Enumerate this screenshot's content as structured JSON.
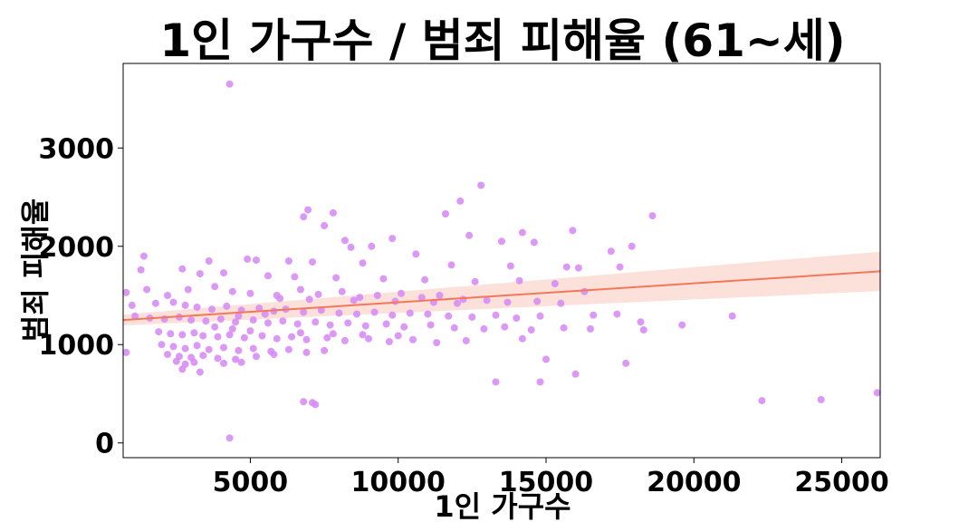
{
  "chart_data": {
    "type": "scatter",
    "title": "1인 가구수 / 범죄 피해율 (61~세)",
    "xlabel": "1인 가구수",
    "ylabel": "범죄 피해율",
    "xlim": [
      700,
      26300
    ],
    "ylim": [
      -150,
      3860
    ],
    "xticks": [
      5000,
      10000,
      15000,
      20000,
      25000
    ],
    "yticks": [
      0,
      1000,
      2000,
      3000
    ],
    "xtick_labels": [
      "5000",
      "10000",
      "15000",
      "20000",
      "25000"
    ],
    "ytick_labels": [
      "0",
      "1000",
      "2000",
      "3000"
    ],
    "grid": false,
    "colors": {
      "points": "#d68af5",
      "regression_line": "#f5775a",
      "confidence_band": "#fcdcd4"
    },
    "regression": {
      "x": [
        700,
        26300
      ],
      "y": [
        1250,
        1745
      ],
      "ci_lower": [
        1195,
        1545
      ],
      "ci_upper": [
        1305,
        1945
      ]
    },
    "points": [
      [
        4300,
        3650
      ],
      [
        12800,
        2620
      ],
      [
        12100,
        2460
      ],
      [
        6950,
        2370
      ],
      [
        7800,
        2340
      ],
      [
        11600,
        2330
      ],
      [
        18600,
        2310
      ],
      [
        6800,
        2300
      ],
      [
        7500,
        2210
      ],
      [
        15900,
        2160
      ],
      [
        14200,
        2140
      ],
      [
        12400,
        2110
      ],
      [
        9800,
        2080
      ],
      [
        8200,
        2060
      ],
      [
        13500,
        2050
      ],
      [
        14600,
        2040
      ],
      [
        17200,
        1950
      ],
      [
        17900,
        2000
      ],
      [
        9100,
        2000
      ],
      [
        8400,
        1990
      ],
      [
        1400,
        1900
      ],
      [
        10600,
        1920
      ],
      [
        4900,
        1870
      ],
      [
        5200,
        1860
      ],
      [
        3600,
        1850
      ],
      [
        6300,
        1850
      ],
      [
        7100,
        1840
      ],
      [
        8800,
        1830
      ],
      [
        11800,
        1810
      ],
      [
        13800,
        1800
      ],
      [
        15700,
        1790
      ],
      [
        16100,
        1780
      ],
      [
        17500,
        1790
      ],
      [
        2700,
        1770
      ],
      [
        1300,
        1760
      ],
      [
        4100,
        1730
      ],
      [
        3300,
        1720
      ],
      [
        5600,
        1700
      ],
      [
        6500,
        1690
      ],
      [
        7900,
        1680
      ],
      [
        9500,
        1670
      ],
      [
        10900,
        1660
      ],
      [
        12600,
        1640
      ],
      [
        14100,
        1650
      ],
      [
        15300,
        1620
      ],
      [
        16300,
        1540
      ],
      [
        2900,
        1560
      ],
      [
        3800,
        1590
      ],
      [
        4400,
        1540
      ],
      [
        5000,
        1520
      ],
      [
        5900,
        1500
      ],
      [
        6700,
        1560
      ],
      [
        7300,
        1510
      ],
      [
        8100,
        1540
      ],
      [
        8700,
        1480
      ],
      [
        9300,
        1500
      ],
      [
        10100,
        1520
      ],
      [
        10800,
        1480
      ],
      [
        11400,
        1500
      ],
      [
        12200,
        1460
      ],
      [
        13000,
        1450
      ],
      [
        13700,
        1430
      ],
      [
        14700,
        1440
      ],
      [
        15500,
        1420
      ],
      [
        1000,
        1400
      ],
      [
        1800,
        1420
      ],
      [
        2400,
        1430
      ],
      [
        2800,
        1400
      ],
      [
        3200,
        1380
      ],
      [
        3700,
        1360
      ],
      [
        4200,
        1390
      ],
      [
        4700,
        1350
      ],
      [
        5300,
        1370
      ],
      [
        5800,
        1340
      ],
      [
        6200,
        1360
      ],
      [
        6800,
        1330
      ],
      [
        7400,
        1350
      ],
      [
        8000,
        1320
      ],
      [
        8600,
        1310
      ],
      [
        9200,
        1330
      ],
      [
        9800,
        1300
      ],
      [
        10400,
        1320
      ],
      [
        11000,
        1310
      ],
      [
        11700,
        1290
      ],
      [
        12500,
        1280
      ],
      [
        13300,
        1300
      ],
      [
        14000,
        1270
      ],
      [
        14800,
        1290
      ],
      [
        16600,
        1300
      ],
      [
        17400,
        1310
      ],
      [
        1100,
        1290
      ],
      [
        1600,
        1270
      ],
      [
        2100,
        1260
      ],
      [
        2600,
        1280
      ],
      [
        3000,
        1250
      ],
      [
        3500,
        1240
      ],
      [
        4000,
        1260
      ],
      [
        4500,
        1230
      ],
      [
        5100,
        1250
      ],
      [
        5600,
        1220
      ],
      [
        6100,
        1240
      ],
      [
        6600,
        1210
      ],
      [
        7200,
        1230
      ],
      [
        7700,
        1200
      ],
      [
        8300,
        1220
      ],
      [
        8900,
        1190
      ],
      [
        9600,
        1210
      ],
      [
        10200,
        1180
      ],
      [
        11100,
        1200
      ],
      [
        11900,
        1170
      ],
      [
        12900,
        1160
      ],
      [
        13600,
        1180
      ],
      [
        14500,
        1150
      ],
      [
        15600,
        1170
      ],
      [
        16500,
        1160
      ],
      [
        18300,
        1150
      ],
      [
        19600,
        1200
      ],
      [
        21300,
        1290
      ],
      [
        1900,
        1130
      ],
      [
        2300,
        1110
      ],
      [
        2700,
        1100
      ],
      [
        3100,
        1120
      ],
      [
        3400,
        1090
      ],
      [
        3900,
        1080
      ],
      [
        4300,
        1100
      ],
      [
        4800,
        1070
      ],
      [
        5400,
        1090
      ],
      [
        5900,
        1060
      ],
      [
        6400,
        1080
      ],
      [
        6900,
        1050
      ],
      [
        7600,
        1070
      ],
      [
        8200,
        1040
      ],
      [
        9000,
        1060
      ],
      [
        9700,
        1030
      ],
      [
        10500,
        1050
      ],
      [
        11300,
        1020
      ],
      [
        12300,
        1040
      ],
      [
        14200,
        1060
      ],
      [
        18200,
        1230
      ],
      [
        2000,
        1000
      ],
      [
        2400,
        980
      ],
      [
        2800,
        960
      ],
      [
        3200,
        990
      ],
      [
        3600,
        950
      ],
      [
        4100,
        970
      ],
      [
        4600,
        940
      ],
      [
        5100,
        960
      ],
      [
        5700,
        930
      ],
      [
        6300,
        950
      ],
      [
        6900,
        920
      ],
      [
        7500,
        940
      ],
      [
        2200,
        900
      ],
      [
        2600,
        880
      ],
      [
        3000,
        870
      ],
      [
        3400,
        890
      ],
      [
        3900,
        860
      ],
      [
        4500,
        850
      ],
      [
        5200,
        880
      ],
      [
        5800,
        900
      ],
      [
        800,
        920
      ],
      [
        2500,
        830
      ],
      [
        2800,
        800
      ],
      [
        3100,
        820
      ],
      [
        4100,
        810
      ],
      [
        4700,
        820
      ],
      [
        2700,
        750
      ],
      [
        3300,
        720
      ],
      [
        15000,
        850
      ],
      [
        17700,
        810
      ],
      [
        13300,
        620
      ],
      [
        14800,
        620
      ],
      [
        16000,
        700
      ],
      [
        6800,
        420
      ],
      [
        7100,
        410
      ],
      [
        7200,
        390
      ],
      [
        22300,
        430
      ],
      [
        24300,
        440
      ],
      [
        26200,
        510
      ],
      [
        4300,
        50
      ],
      [
        800,
        1530
      ],
      [
        1500,
        1560
      ],
      [
        2200,
        1500
      ],
      [
        6000,
        1470
      ],
      [
        7000,
        1460
      ],
      [
        8500,
        1450
      ],
      [
        9900,
        1440
      ],
      [
        11200,
        1430
      ],
      [
        12000,
        1420
      ],
      [
        4600,
        1290
      ],
      [
        5500,
        1310
      ],
      [
        3800,
        1180
      ],
      [
        4400,
        1160
      ],
      [
        5000,
        1140
      ],
      [
        6700,
        1120
      ],
      [
        7800,
        1110
      ],
      [
        8800,
        1100
      ],
      [
        10000,
        1090
      ]
    ]
  }
}
